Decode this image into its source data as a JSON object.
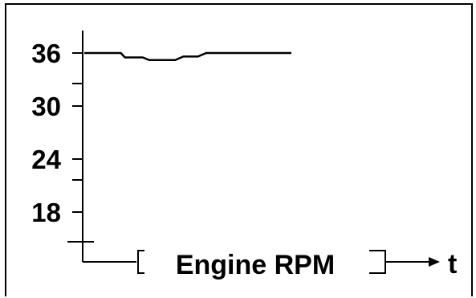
{
  "chart_data": {
    "type": "line",
    "title": "",
    "xlabel": "Engine RPM",
    "x_arrow_label": "t",
    "ylabel": "",
    "y_tick_labels": [
      "36",
      "30",
      "24",
      "18"
    ],
    "y_ticks": [
      36,
      30,
      24,
      18
    ],
    "ylim": [
      12,
      38
    ],
    "grid": false,
    "series": [
      {
        "points": [
          {
            "x": 0,
            "y": 36
          },
          {
            "x": 45,
            "y": 36
          },
          {
            "x": 50,
            "y": 35.5
          },
          {
            "x": 72,
            "y": 35.5
          },
          {
            "x": 80,
            "y": 35.2
          },
          {
            "x": 112,
            "y": 35.2
          },
          {
            "x": 122,
            "y": 35.6
          },
          {
            "x": 140,
            "y": 35.6
          },
          {
            "x": 150,
            "y": 36
          },
          {
            "x": 255,
            "y": 36
          }
        ]
      }
    ]
  }
}
